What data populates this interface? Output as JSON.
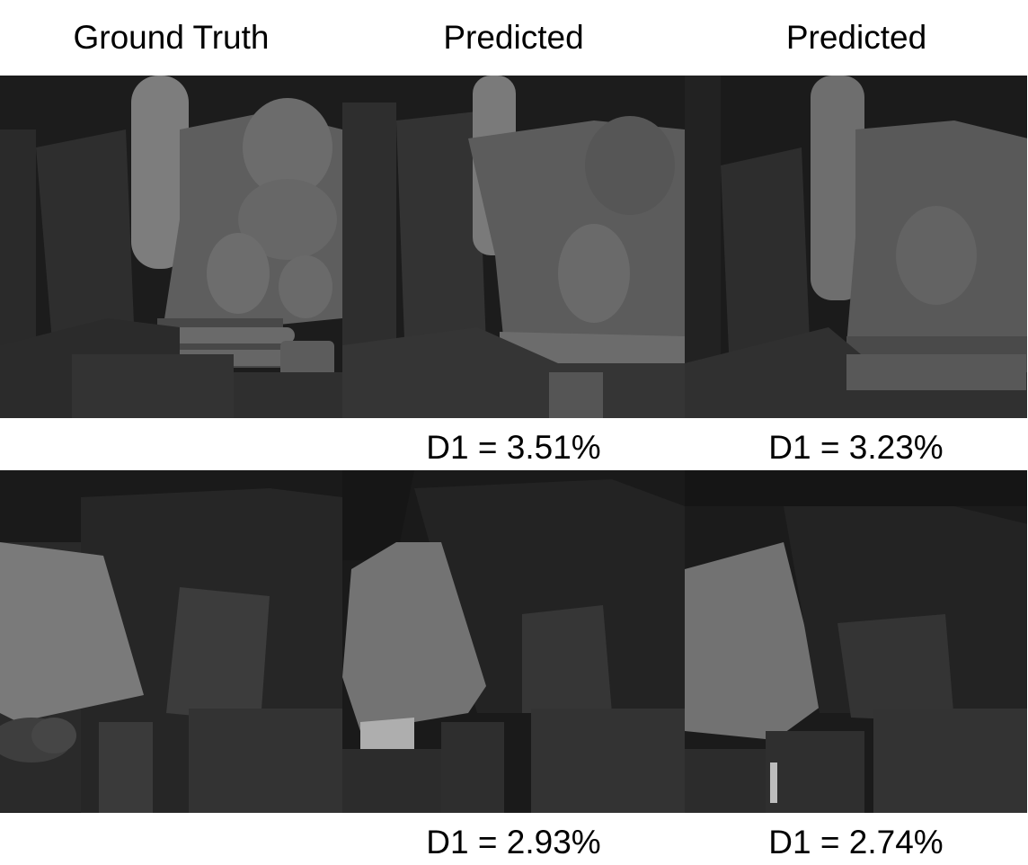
{
  "headers": {
    "ground_truth": "Ground Truth",
    "predicted_1": "Predicted",
    "predicted_2": "Predicted"
  },
  "rows": [
    {
      "metrics": {
        "predicted_1": "D1 = 3.51%",
        "predicted_2": "D1 = 3.23%"
      }
    },
    {
      "metrics": {
        "predicted_1": "D1 = 2.93%",
        "predicted_2": "D1 = 2.74%"
      }
    }
  ]
}
